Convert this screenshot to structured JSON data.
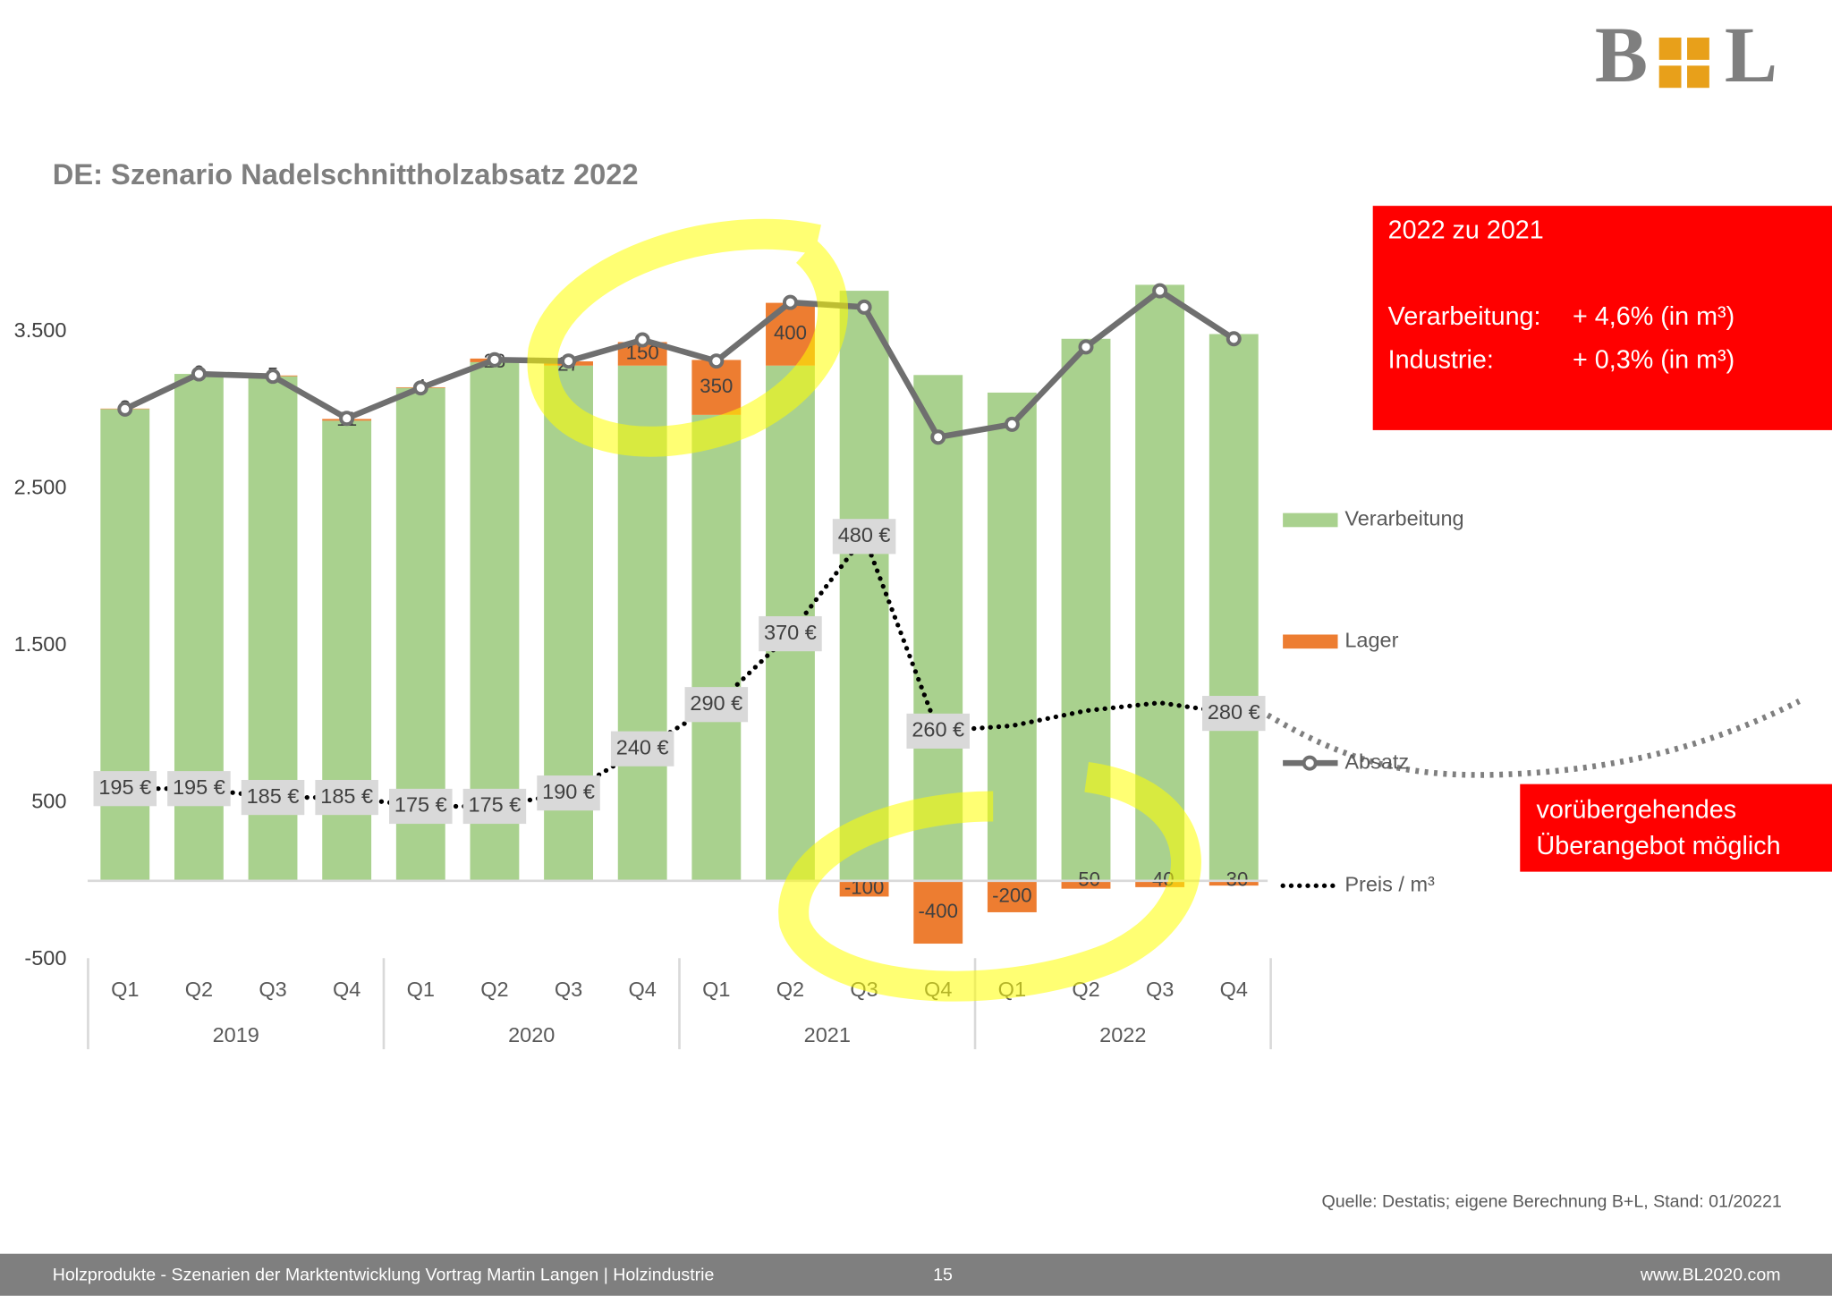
{
  "logo": {
    "left": "B",
    "right": "L"
  },
  "chart_data": {
    "type": "bar",
    "stacked": true,
    "title": "DE: Szenario Nadelschnittholzabsatz 2022",
    "categories": [
      "Q1",
      "Q2",
      "Q3",
      "Q4",
      "Q1",
      "Q2",
      "Q3",
      "Q4",
      "Q1",
      "Q2",
      "Q3",
      "Q4",
      "Q1",
      "Q2",
      "Q3",
      "Q4"
    ],
    "years": [
      "2019",
      "2020",
      "2021",
      "2022"
    ],
    "ylim": [
      -500,
      4000
    ],
    "yticks": [
      {
        "value": 3500,
        "label": "3.500"
      },
      {
        "value": 2500,
        "label": "2.500"
      },
      {
        "value": 1500,
        "label": "1.500"
      },
      500,
      -500
    ],
    "grid": false,
    "legend": "right",
    "series": [
      {
        "name": "Verarbeitung",
        "color": "#a9d18e",
        "type": "bar",
        "values": [
          3007,
          3231,
          3216,
          2933,
          3142,
          3306,
          3284,
          3284,
          2970,
          3284,
          3761,
          3224,
          3112,
          3455,
          3799,
          3485
        ]
      },
      {
        "name": "Lager",
        "color": "#ed7d31",
        "type": "bar",
        "values": [
          3,
          0,
          5,
          11,
          4,
          23,
          27,
          150,
          350,
          400,
          -100,
          -400,
          -200,
          -50,
          -40,
          -30
        ]
      },
      {
        "name": "Absatz",
        "color": "#6f6f6f",
        "type": "line",
        "values": [
          3007,
          3231,
          3216,
          2948,
          3142,
          3321,
          3313,
          3448,
          3313,
          3687,
          3657,
          2828,
          2910,
          3403,
          3761,
          3455
        ]
      },
      {
        "name": "Preis / m³",
        "color": "#000000",
        "type": "line",
        "dotted": true,
        "values": [
          195,
          195,
          185,
          185,
          175,
          175,
          190,
          240,
          290,
          370,
          480,
          260,
          266,
          283,
          292,
          280
        ],
        "value_labels": [
          "195 €",
          "195 €",
          "185 €",
          "185 €",
          "175 €",
          "175 €",
          "190 €",
          "240 €",
          "290 €",
          "370 €",
          "480 €",
          "260 €",
          null,
          null,
          null,
          "280 €"
        ]
      }
    ],
    "box": {
      "title": "2022 zu 2021",
      "rows": [
        [
          "Verarbeitung:",
          "+ 4,6% (in m³)"
        ],
        [
          "Industrie:",
          "+ 0,3% (in m³)"
        ]
      ]
    },
    "note": [
      "vorübergehendes",
      "Überangebot möglich"
    ],
    "source": "Quelle: Destatis; eigene Berechnung B+L, Stand: 01/20221"
  },
  "footer": {
    "left": "Holzprodukte - Szenarien der Marktentwicklung Vortrag Martin Langen  | Holzindustrie",
    "page": "15",
    "right": "www.BL2020.com"
  }
}
